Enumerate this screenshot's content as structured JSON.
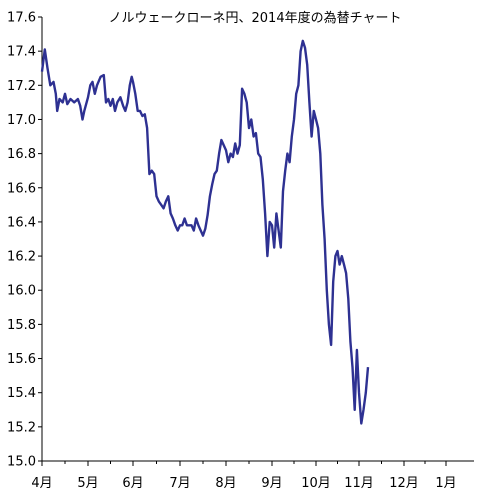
{
  "chart_data": {
    "type": "line",
    "title": "ノルウェークローネ円、2014年度の為替チャート",
    "xlabel": "",
    "ylabel": "",
    "ylim": [
      15.0,
      17.6
    ],
    "yticks": [
      "15.0",
      "15.2",
      "15.4",
      "15.6",
      "15.8",
      "16.0",
      "16.2",
      "16.4",
      "16.6",
      "16.8",
      "17.0",
      "17.2",
      "17.4",
      "17.6"
    ],
    "xtick_labels": [
      "4月",
      "5月",
      "6月",
      "7月",
      "8月",
      "9月",
      "10月",
      "11月",
      "12月",
      "1月"
    ],
    "grid": false,
    "line_color": "#2e3192",
    "series": [
      {
        "values": [
          [
            0.0,
            17.28
          ],
          [
            0.06,
            17.41
          ],
          [
            0.12,
            17.3
          ],
          [
            0.18,
            17.2
          ],
          [
            0.25,
            17.22
          ],
          [
            0.3,
            17.15
          ],
          [
            0.33,
            17.05
          ],
          [
            0.38,
            17.12
          ],
          [
            0.45,
            17.1
          ],
          [
            0.5,
            17.15
          ],
          [
            0.55,
            17.09
          ],
          [
            0.62,
            17.12
          ],
          [
            0.7,
            17.1
          ],
          [
            0.78,
            17.12
          ],
          [
            0.83,
            17.08
          ],
          [
            0.88,
            17.0
          ],
          [
            0.92,
            17.05
          ],
          [
            1.0,
            17.13
          ],
          [
            1.05,
            17.2
          ],
          [
            1.1,
            17.22
          ],
          [
            1.15,
            17.15
          ],
          [
            1.2,
            17.2
          ],
          [
            1.28,
            17.25
          ],
          [
            1.35,
            17.26
          ],
          [
            1.4,
            17.1
          ],
          [
            1.45,
            17.12
          ],
          [
            1.5,
            17.08
          ],
          [
            1.55,
            17.12
          ],
          [
            1.6,
            17.05
          ],
          [
            1.65,
            17.1
          ],
          [
            1.72,
            17.13
          ],
          [
            1.78,
            17.08
          ],
          [
            1.83,
            17.05
          ],
          [
            1.88,
            17.1
          ],
          [
            1.93,
            17.2
          ],
          [
            1.97,
            17.25
          ],
          [
            2.0,
            17.22
          ],
          [
            2.05,
            17.15
          ],
          [
            2.1,
            17.05
          ],
          [
            2.15,
            17.05
          ],
          [
            2.2,
            17.02
          ],
          [
            2.25,
            17.03
          ],
          [
            2.3,
            16.95
          ],
          [
            2.35,
            16.68
          ],
          [
            2.4,
            16.7
          ],
          [
            2.45,
            16.68
          ],
          [
            2.5,
            16.55
          ],
          [
            2.55,
            16.52
          ],
          [
            2.6,
            16.5
          ],
          [
            2.65,
            16.48
          ],
          [
            2.7,
            16.52
          ],
          [
            2.75,
            16.55
          ],
          [
            2.8,
            16.45
          ],
          [
            2.85,
            16.42
          ],
          [
            2.9,
            16.38
          ],
          [
            2.95,
            16.35
          ],
          [
            3.0,
            16.38
          ],
          [
            3.05,
            16.38
          ],
          [
            3.1,
            16.42
          ],
          [
            3.15,
            16.38
          ],
          [
            3.2,
            16.38
          ],
          [
            3.25,
            16.38
          ],
          [
            3.3,
            16.35
          ],
          [
            3.35,
            16.42
          ],
          [
            3.4,
            16.38
          ],
          [
            3.45,
            16.35
          ],
          [
            3.5,
            16.32
          ],
          [
            3.55,
            16.36
          ],
          [
            3.6,
            16.44
          ],
          [
            3.65,
            16.55
          ],
          [
            3.7,
            16.62
          ],
          [
            3.75,
            16.68
          ],
          [
            3.8,
            16.7
          ],
          [
            3.85,
            16.8
          ],
          [
            3.9,
            16.88
          ],
          [
            3.95,
            16.85
          ],
          [
            4.0,
            16.82
          ],
          [
            4.05,
            16.75
          ],
          [
            4.1,
            16.8
          ],
          [
            4.15,
            16.78
          ],
          [
            4.2,
            16.86
          ],
          [
            4.25,
            16.8
          ],
          [
            4.3,
            16.85
          ],
          [
            4.35,
            17.18
          ],
          [
            4.4,
            17.15
          ],
          [
            4.45,
            17.1
          ],
          [
            4.5,
            16.95
          ],
          [
            4.55,
            17.0
          ],
          [
            4.6,
            16.9
          ],
          [
            4.65,
            16.92
          ],
          [
            4.7,
            16.8
          ],
          [
            4.75,
            16.78
          ],
          [
            4.8,
            16.65
          ],
          [
            4.85,
            16.45
          ],
          [
            4.9,
            16.2
          ],
          [
            4.95,
            16.4
          ],
          [
            5.0,
            16.38
          ],
          [
            5.05,
            16.25
          ],
          [
            5.1,
            16.45
          ],
          [
            5.15,
            16.35
          ],
          [
            5.2,
            16.25
          ],
          [
            5.25,
            16.58
          ],
          [
            5.3,
            16.7
          ],
          [
            5.35,
            16.8
          ],
          [
            5.4,
            16.75
          ],
          [
            5.45,
            16.9
          ],
          [
            5.5,
            17.0
          ],
          [
            5.55,
            17.15
          ],
          [
            5.6,
            17.2
          ],
          [
            5.65,
            17.4
          ],
          [
            5.7,
            17.46
          ],
          [
            5.75,
            17.42
          ],
          [
            5.8,
            17.32
          ],
          [
            5.85,
            17.1
          ],
          [
            5.9,
            16.9
          ],
          [
            5.95,
            17.05
          ],
          [
            6.0,
            17.0
          ],
          [
            6.05,
            16.95
          ],
          [
            6.1,
            16.8
          ],
          [
            6.15,
            16.5
          ],
          [
            6.2,
            16.3
          ],
          [
            6.25,
            16.0
          ],
          [
            6.3,
            15.8
          ],
          [
            6.35,
            15.68
          ],
          [
            6.4,
            16.05
          ],
          [
            6.45,
            16.2
          ],
          [
            6.5,
            16.23
          ],
          [
            6.55,
            16.15
          ],
          [
            6.6,
            16.2
          ],
          [
            6.65,
            16.15
          ],
          [
            6.7,
            16.1
          ],
          [
            6.75,
            15.95
          ],
          [
            6.8,
            15.7
          ],
          [
            6.85,
            15.55
          ],
          [
            6.9,
            15.3
          ],
          [
            6.95,
            15.65
          ],
          [
            7.0,
            15.4
          ],
          [
            7.05,
            15.22
          ],
          [
            7.1,
            15.3
          ],
          [
            7.15,
            15.4
          ],
          [
            7.2,
            15.55
          ]
        ]
      }
    ]
  }
}
